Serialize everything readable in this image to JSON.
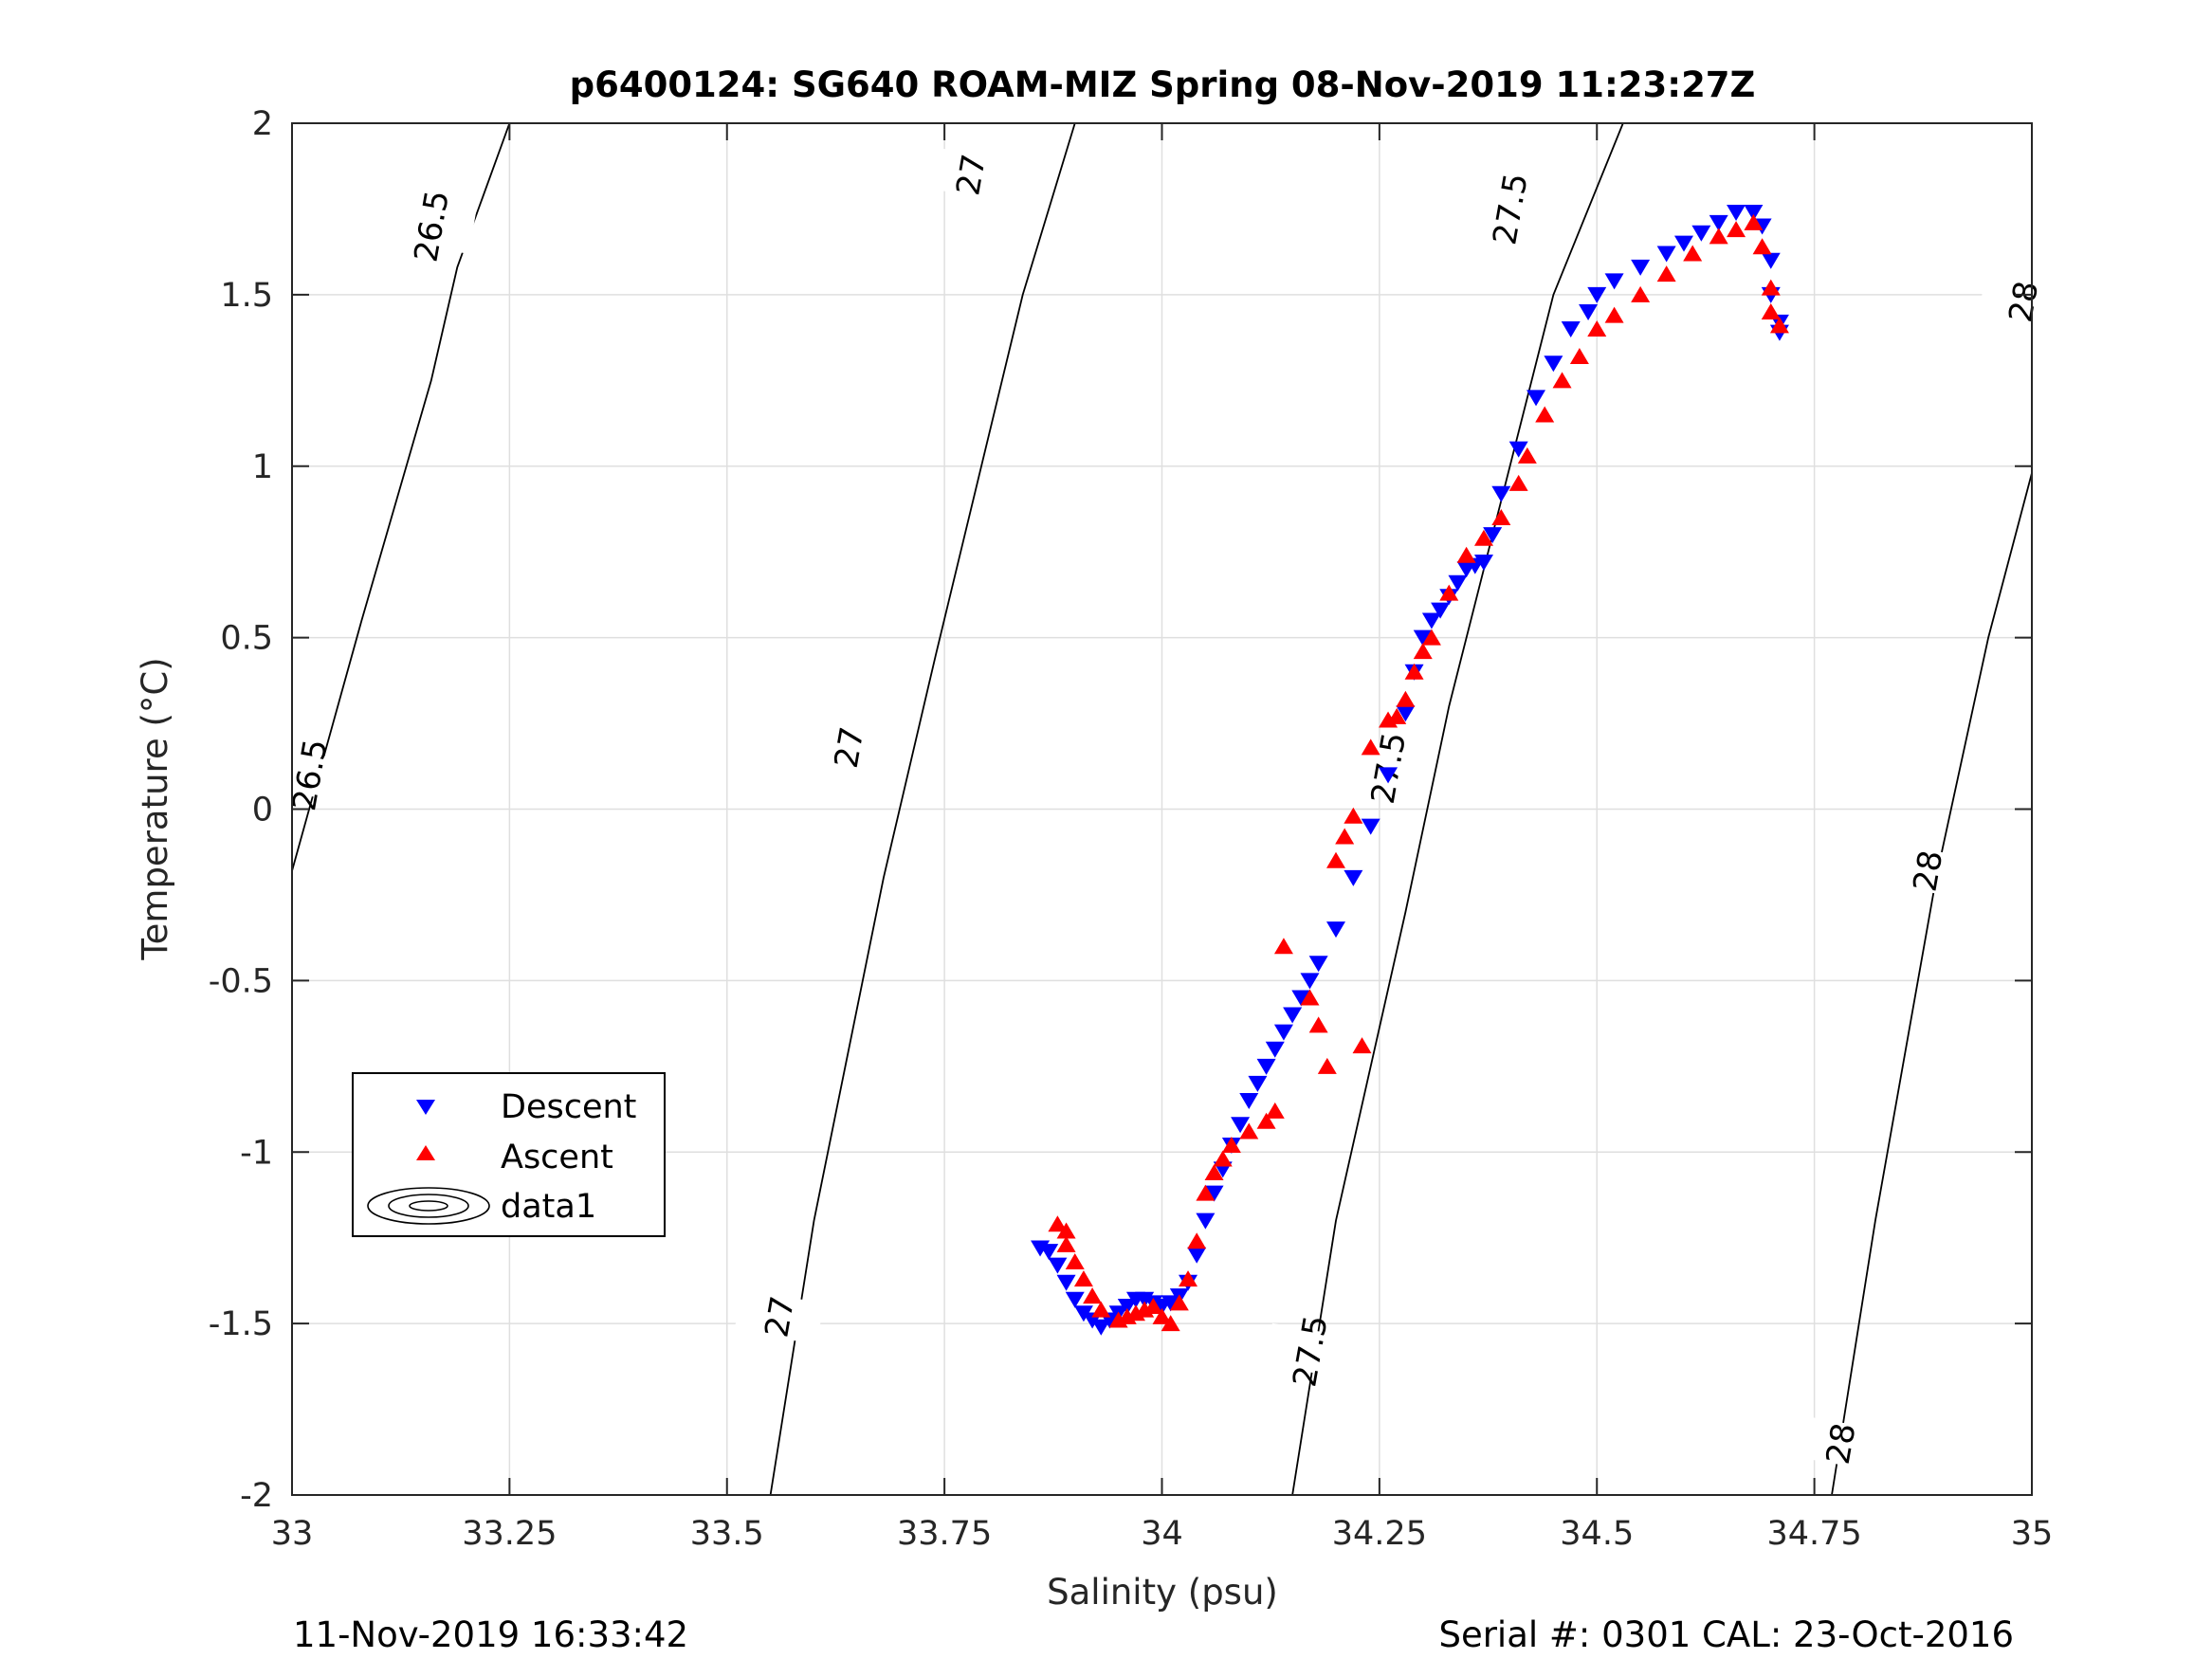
{
  "chart_data": {
    "type": "scatter",
    "title": "p6400124: SG640 ROAM-MIZ Spring 08-Nov-2019 11:23:27Z",
    "xlabel": "Salinity (psu)",
    "ylabel": "Temperature (°C)",
    "xlim": [
      33,
      35
    ],
    "ylim": [
      -2,
      2
    ],
    "grid": true,
    "x_ticks": [
      33,
      33.25,
      33.5,
      33.75,
      34,
      34.25,
      34.5,
      34.75,
      35
    ],
    "x_tick_labels": [
      "33",
      "33.25",
      "33.5",
      "33.75",
      "34",
      "34.25",
      "34.5",
      "34.75",
      "35"
    ],
    "y_ticks": [
      2,
      1.5,
      1,
      0.5,
      0,
      -0.5,
      -1,
      -1.5,
      -2
    ],
    "y_tick_labels": [
      "2",
      "1.5",
      "1",
      "0.5",
      "0",
      "-0.5",
      "-1",
      "-1.5",
      "-2"
    ],
    "legend": {
      "placement": "lower-left",
      "entries": [
        "Descent",
        "Ascent",
        "data1"
      ]
    },
    "series": [
      {
        "name": "Descent",
        "marker": "triangle-down",
        "color": "#0000ff",
        "points": [
          [
            33.86,
            -1.28
          ],
          [
            33.87,
            -1.29
          ],
          [
            33.88,
            -1.33
          ],
          [
            33.89,
            -1.38
          ],
          [
            33.9,
            -1.43
          ],
          [
            33.91,
            -1.47
          ],
          [
            33.92,
            -1.49
          ],
          [
            33.93,
            -1.51
          ],
          [
            33.94,
            -1.49
          ],
          [
            33.95,
            -1.47
          ],
          [
            33.96,
            -1.45
          ],
          [
            33.97,
            -1.43
          ],
          [
            33.98,
            -1.43
          ],
          [
            33.99,
            -1.44
          ],
          [
            34.0,
            -1.45
          ],
          [
            34.01,
            -1.44
          ],
          [
            34.02,
            -1.42
          ],
          [
            34.03,
            -1.38
          ],
          [
            34.04,
            -1.3
          ],
          [
            34.05,
            -1.2
          ],
          [
            34.06,
            -1.12
          ],
          [
            34.07,
            -1.05
          ],
          [
            34.08,
            -0.98
          ],
          [
            34.09,
            -0.92
          ],
          [
            34.1,
            -0.85
          ],
          [
            34.11,
            -0.8
          ],
          [
            34.12,
            -0.75
          ],
          [
            34.13,
            -0.7
          ],
          [
            34.14,
            -0.65
          ],
          [
            34.15,
            -0.6
          ],
          [
            34.16,
            -0.55
          ],
          [
            34.17,
            -0.5
          ],
          [
            34.18,
            -0.45
          ],
          [
            34.2,
            -0.35
          ],
          [
            34.22,
            -0.2
          ],
          [
            34.24,
            -0.05
          ],
          [
            34.26,
            0.1
          ],
          [
            34.28,
            0.28
          ],
          [
            34.29,
            0.4
          ],
          [
            34.3,
            0.5
          ],
          [
            34.31,
            0.55
          ],
          [
            34.32,
            0.58
          ],
          [
            34.33,
            0.62
          ],
          [
            34.34,
            0.66
          ],
          [
            34.35,
            0.7
          ],
          [
            34.36,
            0.71
          ],
          [
            34.37,
            0.72
          ],
          [
            34.38,
            0.8
          ],
          [
            34.39,
            0.92
          ],
          [
            34.41,
            1.05
          ],
          [
            34.43,
            1.2
          ],
          [
            34.45,
            1.3
          ],
          [
            34.47,
            1.4
          ],
          [
            34.49,
            1.45
          ],
          [
            34.5,
            1.5
          ],
          [
            34.52,
            1.54
          ],
          [
            34.55,
            1.58
          ],
          [
            34.58,
            1.62
          ],
          [
            34.6,
            1.65
          ],
          [
            34.62,
            1.68
          ],
          [
            34.64,
            1.71
          ],
          [
            34.66,
            1.74
          ],
          [
            34.68,
            1.74
          ],
          [
            34.69,
            1.7
          ],
          [
            34.7,
            1.6
          ],
          [
            34.7,
            1.5
          ],
          [
            34.71,
            1.42
          ],
          [
            34.71,
            1.39
          ]
        ]
      },
      {
        "name": "Ascent",
        "marker": "triangle-up",
        "color": "#ff0000",
        "points": [
          [
            33.88,
            -1.21
          ],
          [
            33.89,
            -1.23
          ],
          [
            33.89,
            -1.27
          ],
          [
            33.9,
            -1.32
          ],
          [
            33.91,
            -1.37
          ],
          [
            33.92,
            -1.42
          ],
          [
            33.93,
            -1.46
          ],
          [
            33.95,
            -1.49
          ],
          [
            33.96,
            -1.48
          ],
          [
            33.97,
            -1.47
          ],
          [
            33.98,
            -1.46
          ],
          [
            33.99,
            -1.45
          ],
          [
            34.0,
            -1.48
          ],
          [
            34.01,
            -1.5
          ],
          [
            34.02,
            -1.44
          ],
          [
            34.03,
            -1.37
          ],
          [
            34.04,
            -1.26
          ],
          [
            34.05,
            -1.12
          ],
          [
            34.06,
            -1.06
          ],
          [
            34.07,
            -1.02
          ],
          [
            34.08,
            -0.98
          ],
          [
            34.1,
            -0.94
          ],
          [
            34.12,
            -0.91
          ],
          [
            34.13,
            -0.88
          ],
          [
            34.14,
            -0.4
          ],
          [
            34.17,
            -0.55
          ],
          [
            34.18,
            -0.63
          ],
          [
            34.19,
            -0.75
          ],
          [
            34.2,
            -0.15
          ],
          [
            34.21,
            -0.08
          ],
          [
            34.22,
            -0.02
          ],
          [
            34.23,
            -0.69
          ],
          [
            34.24,
            0.18
          ],
          [
            34.26,
            0.26
          ],
          [
            34.27,
            0.27
          ],
          [
            34.28,
            0.32
          ],
          [
            34.29,
            0.4
          ],
          [
            34.3,
            0.46
          ],
          [
            34.31,
            0.5
          ],
          [
            34.33,
            0.63
          ],
          [
            34.35,
            0.74
          ],
          [
            34.37,
            0.79
          ],
          [
            34.39,
            0.85
          ],
          [
            34.41,
            0.95
          ],
          [
            34.42,
            1.03
          ],
          [
            34.44,
            1.15
          ],
          [
            34.46,
            1.25
          ],
          [
            34.48,
            1.32
          ],
          [
            34.5,
            1.4
          ],
          [
            34.52,
            1.44
          ],
          [
            34.55,
            1.5
          ],
          [
            34.58,
            1.56
          ],
          [
            34.61,
            1.62
          ],
          [
            34.64,
            1.67
          ],
          [
            34.66,
            1.69
          ],
          [
            34.68,
            1.71
          ],
          [
            34.69,
            1.64
          ],
          [
            34.7,
            1.52
          ],
          [
            34.7,
            1.45
          ],
          [
            34.71,
            1.41
          ]
        ]
      },
      {
        "name": "data1",
        "type": "contour",
        "color": "#000000",
        "levels": [
          {
            "label": "26.5",
            "line": [
              [
                33.0,
                -0.18
              ],
              [
                33.08,
                0.55
              ],
              [
                33.16,
                1.25
              ],
              [
                33.19,
                1.58
              ],
              [
                33.25,
                2.0
              ]
            ]
          },
          {
            "label": "27",
            "line": [
              [
                33.55,
                -2.0
              ],
              [
                33.6,
                -1.2
              ],
              [
                33.68,
                -0.2
              ],
              [
                33.74,
                0.45
              ],
              [
                33.84,
                1.5
              ],
              [
                33.9,
                2.0
              ]
            ]
          },
          {
            "label": "27.5",
            "line": [
              [
                34.15,
                -2.0
              ],
              [
                34.2,
                -1.2
              ],
              [
                34.28,
                -0.3
              ],
              [
                34.33,
                0.3
              ],
              [
                34.45,
                1.5
              ],
              [
                34.53,
                2.0
              ]
            ]
          },
          {
            "label": "28",
            "line": [
              [
                34.77,
                -2.0
              ],
              [
                34.82,
                -1.2
              ],
              [
                34.89,
                -0.2
              ],
              [
                34.95,
                0.5
              ],
              [
                35.0,
                0.98
              ]
            ]
          }
        ],
        "label_positions": [
          {
            "text": "26.5",
            "x": 33.16,
            "y": 1.7
          },
          {
            "text": "26.5",
            "x": 33.02,
            "y": 0.1
          },
          {
            "text": "27",
            "x": 33.78,
            "y": 1.85
          },
          {
            "text": "27",
            "x": 33.64,
            "y": 0.18
          },
          {
            "text": "27",
            "x": 33.56,
            "y": -1.48
          },
          {
            "text": "27.5",
            "x": 34.4,
            "y": 1.75
          },
          {
            "text": "27.5",
            "x": 34.26,
            "y": 0.12
          },
          {
            "text": "27.5",
            "x": 34.17,
            "y": -1.58
          },
          {
            "text": "28",
            "x": 34.99,
            "y": 1.48
          },
          {
            "text": "28",
            "x": 34.88,
            "y": -0.18
          },
          {
            "text": "28",
            "x": 34.78,
            "y": -1.85
          }
        ]
      }
    ]
  },
  "footer": {
    "timestamp": "11-Nov-2019 16:33:42",
    "serial": "Serial #: 0301  CAL: 23-Oct-2016"
  }
}
